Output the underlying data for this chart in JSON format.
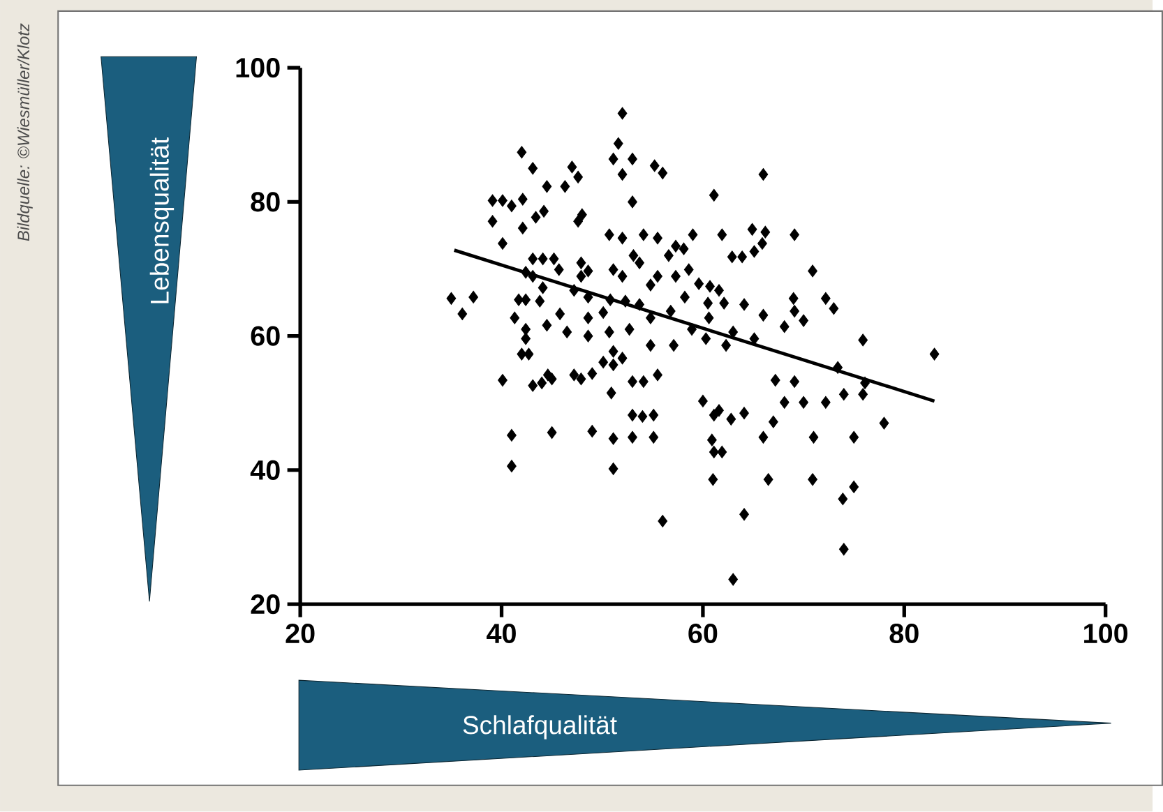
{
  "chart_data": {
    "type": "scatter",
    "xlabel": "Schlafqualität",
    "ylabel": "Lebensqualität",
    "annotations": [
      "Bildquelle: ©Wiesmüller/Klotz"
    ],
    "xlim": [
      20,
      100
    ],
    "ylim": [
      20,
      100
    ],
    "xticks": [
      20,
      40,
      60,
      80,
      100
    ],
    "yticks": [
      20,
      40,
      60,
      80,
      100
    ],
    "marker": "diamond",
    "series": [
      {
        "color": "#000000",
        "x": [
          35.0,
          37.2,
          36.1,
          52.0,
          42.0,
          43.1,
          61.1,
          66.0,
          55.2,
          56.0,
          51.6,
          51.1,
          53.0,
          52.0,
          47.0,
          47.6,
          46.3,
          44.5,
          42.1,
          40.1,
          39.1,
          41.0,
          39.1,
          42.1,
          43.4,
          44.2,
          47.6,
          48.0,
          53.0,
          40.1,
          59.0,
          61.9,
          64.9,
          66.2,
          69.1,
          65.9,
          65.1,
          62.9,
          63.9,
          57.3,
          58.1,
          70.9,
          72.2,
          73.0,
          69.0,
          69.1,
          68.1,
          70.0,
          75.9,
          83.0,
          66.0,
          64.1,
          62.1,
          60.5,
          60.6,
          73.4,
          76.1,
          69.1,
          67.2,
          68.1,
          70.0,
          72.2,
          74.0,
          75.9,
          78.0,
          75.0,
          71.0,
          66.0,
          67.0,
          64.1,
          62.8,
          61.6,
          60.0,
          61.1,
          61.9,
          61.1,
          60.9,
          66.5,
          70.9,
          73.9,
          75.0,
          74.0,
          64.1,
          63.0,
          56.0,
          61.0,
          40.1,
          41.0,
          41.0,
          45.0,
          45.0,
          43.1,
          44.0,
          51.1,
          51.1,
          49.0,
          53.0,
          55.1,
          53.0,
          55.1,
          54.0,
          50.9,
          47.9,
          49.0,
          47.2,
          44.6,
          42.0,
          42.7,
          52.0,
          53.0,
          54.1,
          55.5,
          50.1,
          51.1,
          51.1,
          42.4,
          43.8,
          42.4,
          42.4,
          45.8,
          45.2,
          45.7,
          47.9,
          48.6,
          47.9,
          43.1,
          44.1,
          42.4,
          44.1,
          47.2,
          48.6,
          50.8,
          50.1,
          52.3,
          53.7,
          54.8,
          50.7,
          52.0,
          54.1,
          55.5,
          56.6,
          53.1,
          51.1,
          52.0,
          53.7,
          55.5,
          57.3,
          58.6,
          59.6,
          60.7,
          61.6,
          58.2,
          56.8,
          54.8,
          52.7,
          50.7,
          48.6,
          58.9,
          60.3,
          62.3,
          63.0,
          65.1,
          57.1,
          54.8,
          48.6,
          46.5,
          44.5,
          41.3,
          41.7,
          43.1
        ],
        "values": [
          65.6,
          65.8,
          63.3,
          93.2,
          87.4,
          85.0,
          81.0,
          84.1,
          85.4,
          84.3,
          88.7,
          86.4,
          86.4,
          84.1,
          85.2,
          83.7,
          82.3,
          82.3,
          80.4,
          80.2,
          80.2,
          79.4,
          77.1,
          76.1,
          77.7,
          78.6,
          77.1,
          78.1,
          80.0,
          73.8,
          75.1,
          75.1,
          75.9,
          75.5,
          75.1,
          73.8,
          72.6,
          71.8,
          71.8,
          73.4,
          73.0,
          69.7,
          65.6,
          64.1,
          65.6,
          63.7,
          61.4,
          62.3,
          59.4,
          57.3,
          63.1,
          64.7,
          64.9,
          64.9,
          62.7,
          55.3,
          53.0,
          53.2,
          53.4,
          50.1,
          50.1,
          50.1,
          51.3,
          51.3,
          47.0,
          44.9,
          44.9,
          44.9,
          47.2,
          48.5,
          47.6,
          48.9,
          50.3,
          48.2,
          42.7,
          42.7,
          44.5,
          38.6,
          38.6,
          35.7,
          37.5,
          28.2,
          33.4,
          23.7,
          32.4,
          38.6,
          53.4,
          45.2,
          40.6,
          45.6,
          53.6,
          52.6,
          53.0,
          44.7,
          40.2,
          45.8,
          44.9,
          44.9,
          48.2,
          48.2,
          48.0,
          51.5,
          53.6,
          54.4,
          54.2,
          54.2,
          57.3,
          57.3,
          56.7,
          53.2,
          53.2,
          54.2,
          56.1,
          55.7,
          57.7,
          65.4,
          65.2,
          61.0,
          59.6,
          63.3,
          71.5,
          69.9,
          70.9,
          69.7,
          68.9,
          71.5,
          71.5,
          69.5,
          67.2,
          66.8,
          65.8,
          65.4,
          63.5,
          65.2,
          64.7,
          67.6,
          75.1,
          74.6,
          75.1,
          74.6,
          72.0,
          72.0,
          69.9,
          68.9,
          70.9,
          68.9,
          68.9,
          69.9,
          67.8,
          67.4,
          66.8,
          65.8,
          63.7,
          62.7,
          61.0,
          60.6,
          60.0,
          61.0,
          59.6,
          58.6,
          60.6,
          59.6,
          58.6,
          58.6,
          62.7,
          60.6,
          61.6,
          62.7,
          65.4,
          68.9
        ]
      },
      {
        "type": "line",
        "marker": "none",
        "color": "#000000",
        "x": [
          35.3,
          83.0
        ],
        "values": [
          72.8,
          50.3
        ]
      }
    ]
  }
}
